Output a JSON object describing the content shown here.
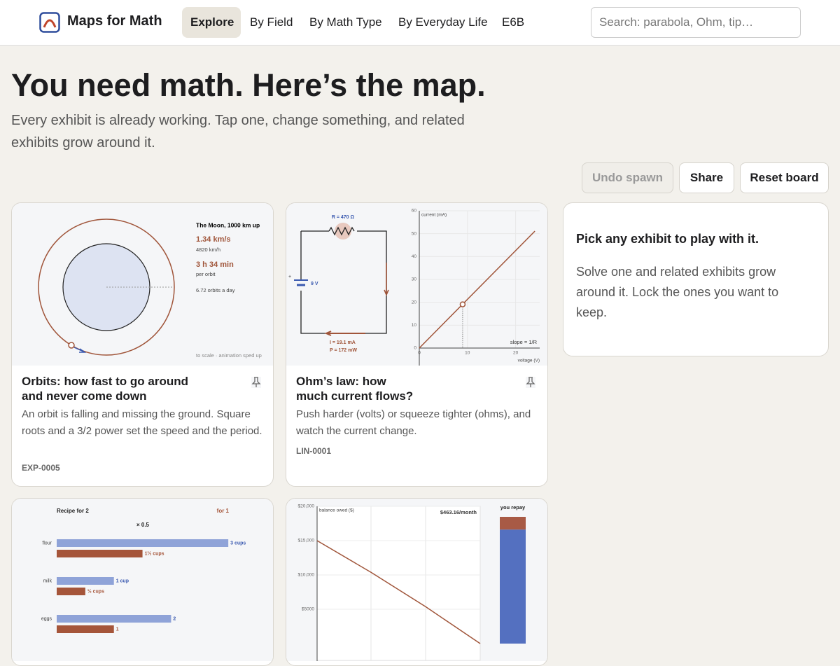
{
  "nav": {
    "brand": "Maps for Math",
    "links": [
      "Explore",
      "By Field",
      "By Math Type",
      "By Everyday Life",
      "E6B"
    ],
    "search_placeholder": "Search: parabola, Ohm, tip…"
  },
  "hero": {
    "title": "You need math. Here’s the map.",
    "subtitle": "Every exhibit is already working. Tap one, change something, and related exhibits grow around it."
  },
  "actions": [
    "Undo spawn",
    "Share",
    "Reset board"
  ],
  "panel": {
    "title": "Pick any exhibit to play with it.",
    "text": "Solve one and related exhibits grow around it. Lock the ones you want to keep."
  },
  "cards": [
    {
      "title": "Orbits: how fast to go around and never come down",
      "description": "An orbit is falling and missing the ground. Square roots and a 3/2 power set the speed and the period.",
      "id": "EXP-0005",
      "figure": {
        "heading": "The Moon, 1000 km up",
        "speed": "1.34 km/s",
        "speed_kmh": "4820 km/h",
        "period": "3 h 34 min",
        "period_label": "per orbit",
        "per_day": "6.72 orbits a day",
        "note": "to scale · animation sped up"
      }
    },
    {
      "title": "Ohm’s law: how much current flows?",
      "description": "Push harder (volts) or squeeze tighter (ohms), and watch the current change.",
      "id": "LIN-0001",
      "figure": {
        "resistance": "R = 470 Ω",
        "voltage": "9 V",
        "current": "I = 19.1 mA",
        "power": "P = 172 mW"
      }
    }
  ],
  "chart_data": [
    {
      "type": "line",
      "y_label": "current (mA)",
      "x_label": "voltage (V)",
      "annotation": "slope = 1/R",
      "x": [
        0,
        24
      ],
      "series": [
        {
          "values": [
            0,
            51.1
          ],
          "color": "#a0553a"
        }
      ],
      "points": {
        "x": [
          9
        ],
        "values": [
          19.1
        ]
      },
      "xlim": [
        0,
        25
      ],
      "ylim": [
        0,
        60
      ],
      "xticks": [
        0,
        10,
        20
      ],
      "yticks": [
        0,
        10,
        20,
        30,
        40,
        50,
        60
      ],
      "grid": true
    },
    {
      "type": "bar",
      "scale_label": "× 0.5",
      "categories": [
        "flour",
        "milk",
        "eggs"
      ],
      "xlim": [
        0,
        3.5
      ],
      "series": [
        {
          "name": "Recipe for 2",
          "color": "#8fa3d8",
          "values": [
            3,
            1,
            2
          ],
          "value_labels": [
            "3 cups",
            "1 cup",
            "2"
          ]
        },
        {
          "name": "for 1",
          "color": "#a5553a",
          "values": [
            1.5,
            0.5,
            1
          ],
          "value_labels": [
            "1½ cups",
            "½ cups",
            "1"
          ]
        }
      ]
    },
    {
      "type": "line",
      "y_label": "balance owed ($)",
      "annotation": "$463.16/month",
      "x": [
        0,
        12,
        24,
        36
      ],
      "series": [
        {
          "values": [
            15000,
            10344,
            5353,
            0
          ],
          "color": "#a0553a"
        }
      ],
      "xlim": [
        0,
        36
      ],
      "ylim": [
        0,
        20000
      ],
      "yticks": [
        {
          "value": 20000,
          "label": "$20,000"
        },
        {
          "value": 15000,
          "label": "$15,000"
        },
        {
          "value": 10000,
          "label": "$10,000"
        },
        {
          "value": 5000,
          "label": "$5000"
        }
      ],
      "grid": true,
      "stack": {
        "title": "you repay",
        "series": [
          {
            "color": "#5470c0",
            "values": [
              15000
            ]
          },
          {
            "color": "#a85a45",
            "values": [
              1674
            ]
          }
        ]
      }
    }
  ]
}
